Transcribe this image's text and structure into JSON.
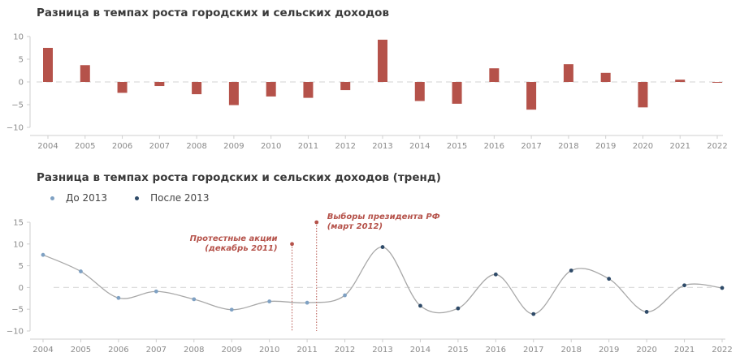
{
  "chart_data": [
    {
      "type": "bar",
      "title": "Разница в темпах роста городских и сельских доходов",
      "categories": [
        "2004",
        "2005",
        "2006",
        "2007",
        "2008",
        "2009",
        "2010",
        "2011",
        "2012",
        "2013",
        "2014",
        "2015",
        "2016",
        "2017",
        "2018",
        "2019",
        "2020",
        "2021",
        "2022"
      ],
      "values": [
        7.5,
        3.7,
        -2.4,
        -0.9,
        -2.7,
        -5.1,
        -3.2,
        -3.5,
        -1.8,
        9.3,
        -4.2,
        -4.8,
        3.0,
        -6.1,
        3.9,
        2.0,
        -5.6,
        0.5,
        -0.1
      ],
      "ylim": [
        -10,
        10
      ],
      "yticks": [
        10,
        5,
        0,
        -5,
        -10
      ],
      "ytick_labels": [
        "10",
        "5",
        "0",
        "−5",
        "−10"
      ],
      "bar_color": "#b5524a",
      "zero_line": "dashed"
    },
    {
      "type": "line",
      "title": "Разница в темпах роста городских и сельских доходов (тренд)",
      "x": [
        "2004",
        "2005",
        "2006",
        "2007",
        "2008",
        "2009",
        "2010",
        "2011",
        "2012",
        "2013",
        "2014",
        "2015",
        "2016",
        "2017",
        "2018",
        "2019",
        "2020",
        "2021",
        "2022"
      ],
      "values": [
        7.5,
        3.7,
        -2.4,
        -0.9,
        -2.7,
        -5.1,
        -3.2,
        -3.5,
        -1.8,
        9.3,
        -4.2,
        -4.8,
        3.0,
        -6.1,
        3.9,
        2.0,
        -5.6,
        0.5,
        -0.1
      ],
      "ylim": [
        -10,
        15
      ],
      "yticks": [
        15,
        10,
        5,
        0,
        -5,
        -10
      ],
      "ytick_labels": [
        "15",
        "10",
        "5",
        "0",
        "−5",
        "−10"
      ],
      "line_color": "#a8a8a8",
      "series": [
        {
          "name": "До 2013",
          "color": "#7fa1c3",
          "from": 0,
          "to": 8
        },
        {
          "name": "После 2013",
          "color": "#2e4a68",
          "from": 9,
          "to": 18
        }
      ],
      "annotations": [
        {
          "year": 2010.6,
          "value": 10,
          "lines": [
            "Протестные акции",
            "(декабрь 2011)"
          ],
          "align": "end"
        },
        {
          "year": 2011.25,
          "value": 15,
          "lines": [
            "Выборы президента РФ",
            "(март 2012)"
          ],
          "align": "start"
        }
      ],
      "annotation_color": "#b5524a",
      "zero_line": "dashed"
    }
  ]
}
